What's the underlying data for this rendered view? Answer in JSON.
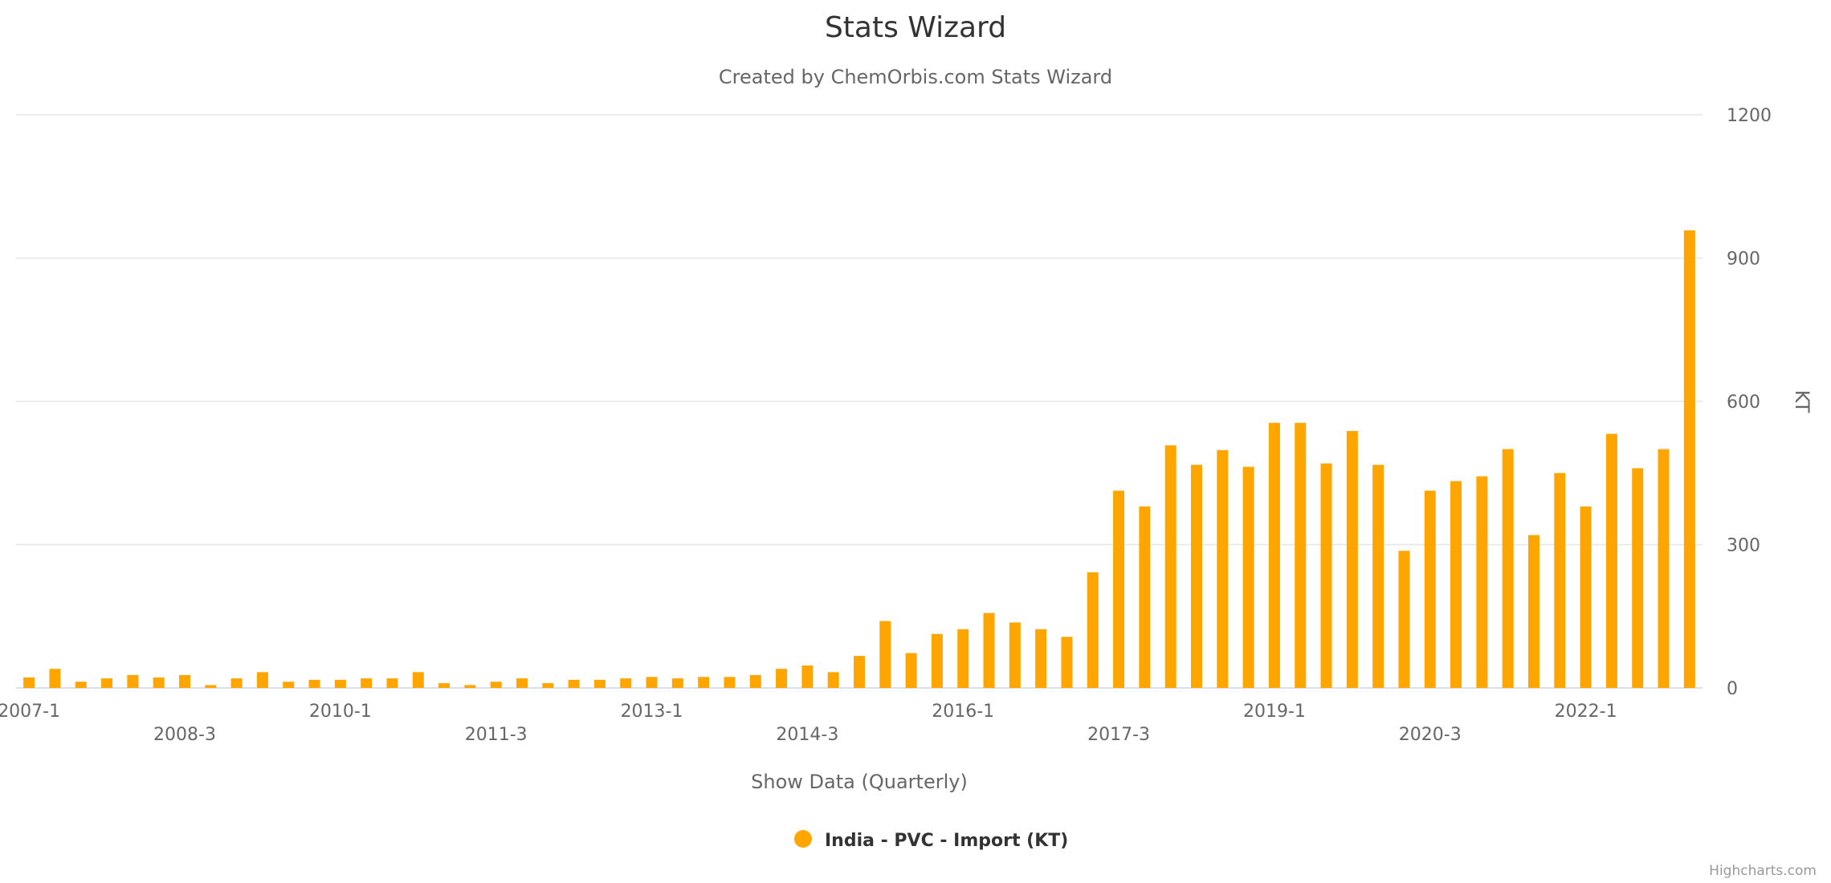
{
  "colors": {
    "series": "#ffa500"
  },
  "credits": "Highcharts.com",
  "chart_data": {
    "type": "bar",
    "title": "Stats Wizard",
    "subtitle": "Created by ChemOrbis.com Stats Wizard",
    "xlabel": "Show Data (Quarterly)",
    "ylabel": "KT",
    "ylim": [
      0,
      1200
    ],
    "yticks": [
      0,
      300,
      600,
      900,
      1200
    ],
    "grid": true,
    "legend_position": "bottom-center",
    "x_tick_labels": [
      {
        "index": 0,
        "label": "2007-1"
      },
      {
        "index": 6,
        "label": "2008-3"
      },
      {
        "index": 12,
        "label": "2010-1"
      },
      {
        "index": 18,
        "label": "2011-3"
      },
      {
        "index": 24,
        "label": "2013-1"
      },
      {
        "index": 30,
        "label": "2014-3"
      },
      {
        "index": 36,
        "label": "2016-1"
      },
      {
        "index": 42,
        "label": "2017-3"
      },
      {
        "index": 48,
        "label": "2019-1"
      },
      {
        "index": 54,
        "label": "2020-3"
      },
      {
        "index": 60,
        "label": "2022-1"
      }
    ],
    "series": [
      {
        "name": "India - PVC - Import (KT)",
        "values": [
          22,
          40,
          13,
          20,
          27,
          22,
          27,
          6,
          20,
          33,
          13,
          17,
          17,
          20,
          20,
          33,
          10,
          6,
          13,
          20,
          10,
          17,
          17,
          20,
          23,
          20,
          23,
          23,
          27,
          40,
          47,
          33,
          67,
          140,
          73,
          113,
          123,
          157,
          137,
          123,
          107,
          242,
          413,
          380,
          508,
          467,
          498,
          463,
          555,
          555,
          470,
          538,
          467,
          287,
          413,
          433,
          443,
          500,
          320,
          450,
          380,
          532,
          460,
          500,
          958
        ]
      }
    ]
  }
}
